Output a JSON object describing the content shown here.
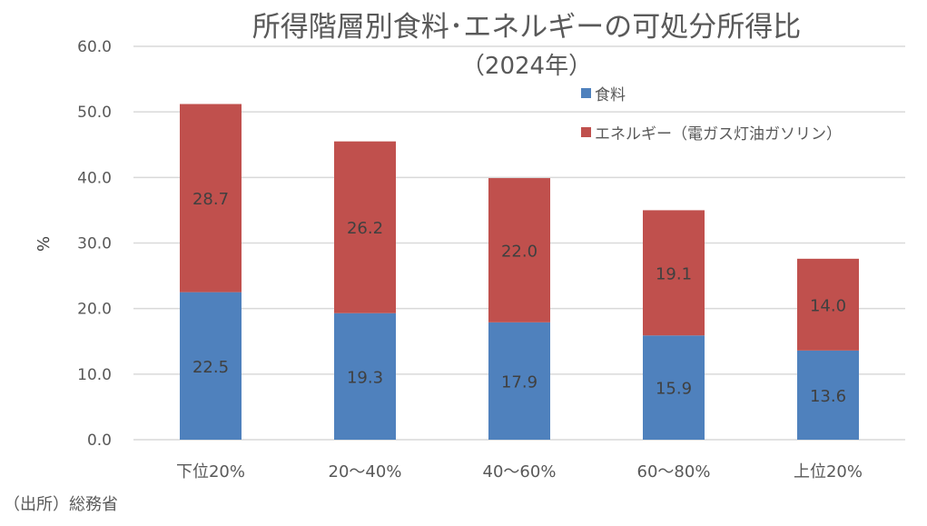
{
  "chart_data": {
    "type": "bar",
    "stacked": true,
    "title": "所得階層別食料･エネルギーの可処分所得比",
    "subtitle": "（2024年）",
    "ylabel": "%",
    "xlabel": "",
    "ylim": [
      0,
      60
    ],
    "yticks": [
      "0.0",
      "10.0",
      "20.0",
      "30.0",
      "40.0",
      "50.0",
      "60.0"
    ],
    "grid": true,
    "legend_position": "top-right",
    "categories": [
      "下位20%",
      "20～40%",
      "40～60%",
      "60～80%",
      "上位20%"
    ],
    "series": [
      {
        "name": "食料",
        "color": "#4f81bd",
        "values": [
          22.5,
          19.3,
          17.9,
          15.9,
          13.6
        ],
        "labels": [
          "22.5",
          "19.3",
          "17.9",
          "15.9",
          "13.6"
        ]
      },
      {
        "name": "エネルギー（電ガス灯油ガソリン）",
        "color": "#c0504d",
        "values": [
          28.7,
          26.2,
          22.0,
          19.1,
          14.0
        ],
        "labels": [
          "28.7",
          "26.2",
          "22.0",
          "19.1",
          "14.0"
        ]
      }
    ],
    "source": "（出所）総務省"
  }
}
